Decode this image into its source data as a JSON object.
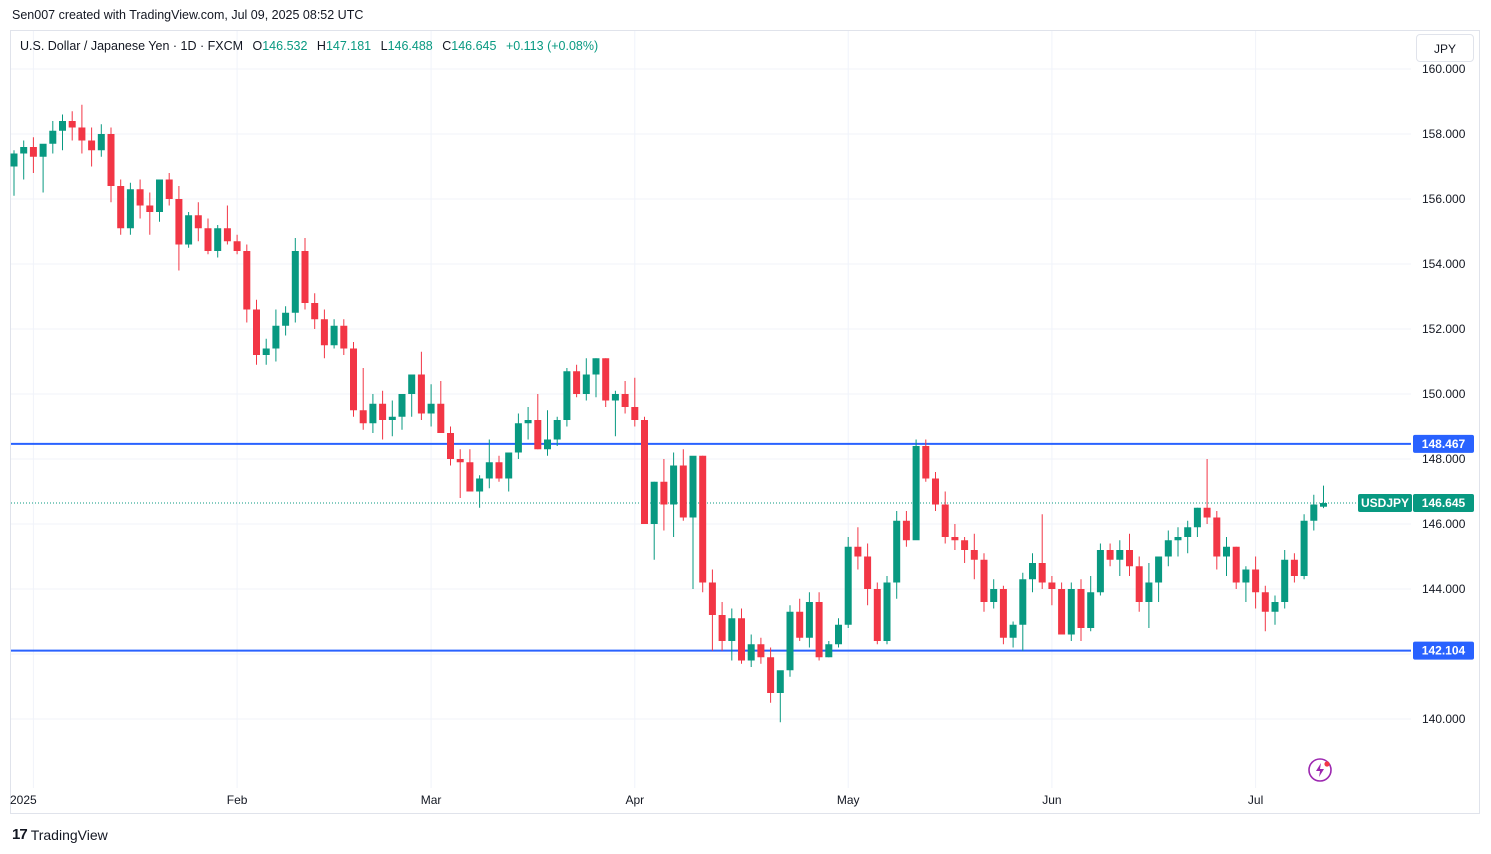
{
  "attribution": "Sen007 created with TradingView.com, Jul 09, 2025 08:52 UTC",
  "legend": {
    "symbol": "U.S. Dollar / Japanese Yen · 1D · FXCM",
    "open_label": "O",
    "open": "146.532",
    "high_label": "H",
    "high": "147.181",
    "low_label": "L",
    "low": "146.488",
    "close_label": "C",
    "close": "146.645",
    "change": "+0.113 (+0.08%)"
  },
  "currency_button": "JPY",
  "logo_text": "TradingView",
  "colors": {
    "up": "#089981",
    "down": "#f23645",
    "line": "#2962ff",
    "grid": "#f0f3fa"
  },
  "chart_data": {
    "type": "candlestick",
    "symbol": "USDJPY",
    "timeframe": "1D",
    "ylim": [
      138.6,
      160.5
    ],
    "y_ticks": [
      "140.000",
      "142.000",
      "144.000",
      "146.000",
      "148.000",
      "150.000",
      "152.000",
      "154.000",
      "156.000",
      "158.000",
      "160.000"
    ],
    "x_ticks": [
      {
        "label": "2025",
        "index": 2
      },
      {
        "label": "Feb",
        "index": 23
      },
      {
        "label": "Mar",
        "index": 43
      },
      {
        "label": "Apr",
        "index": 64
      },
      {
        "label": "May",
        "index": 86
      },
      {
        "label": "Jun",
        "index": 107
      },
      {
        "label": "Jul",
        "index": 128
      }
    ],
    "horizontal_lines": [
      {
        "value": 148.467,
        "label": "148.467"
      },
      {
        "value": 142.104,
        "label": "142.104"
      }
    ],
    "last_price": {
      "value": 146.645,
      "symbol_label": "USDJPY",
      "price_label": "146.645"
    },
    "candles": [
      [
        157.0,
        157.5,
        156.1,
        157.4
      ],
      [
        157.4,
        157.8,
        156.6,
        157.6
      ],
      [
        157.6,
        157.9,
        156.8,
        157.3
      ],
      [
        157.3,
        157.6,
        156.2,
        157.7
      ],
      [
        157.7,
        158.4,
        157.4,
        158.1
      ],
      [
        158.1,
        158.6,
        157.5,
        158.4
      ],
      [
        158.4,
        158.7,
        157.8,
        158.2
      ],
      [
        158.2,
        158.9,
        157.4,
        157.8
      ],
      [
        157.8,
        158.2,
        157.0,
        157.5
      ],
      [
        157.5,
        158.3,
        157.3,
        158.0
      ],
      [
        158.0,
        158.2,
        155.9,
        156.4
      ],
      [
        156.4,
        156.6,
        154.9,
        155.1
      ],
      [
        155.1,
        156.5,
        154.9,
        156.3
      ],
      [
        156.3,
        156.6,
        155.4,
        155.8
      ],
      [
        155.8,
        156.2,
        154.9,
        155.6
      ],
      [
        155.6,
        156.6,
        155.3,
        156.6
      ],
      [
        156.6,
        156.8,
        155.8,
        156.0
      ],
      [
        156.0,
        156.4,
        153.8,
        154.6
      ],
      [
        154.6,
        155.6,
        154.5,
        155.5
      ],
      [
        155.5,
        155.9,
        154.7,
        155.1
      ],
      [
        155.1,
        155.4,
        154.3,
        154.4
      ],
      [
        154.4,
        155.2,
        154.2,
        155.1
      ],
      [
        155.1,
        155.8,
        154.6,
        154.7
      ],
      [
        154.7,
        154.9,
        154.3,
        154.4
      ],
      [
        154.4,
        154.6,
        152.2,
        152.6
      ],
      [
        152.6,
        152.9,
        150.9,
        151.2
      ],
      [
        151.2,
        151.7,
        150.9,
        151.4
      ],
      [
        151.4,
        152.6,
        151.0,
        152.1
      ],
      [
        152.1,
        152.7,
        151.8,
        152.5
      ],
      [
        152.5,
        154.8,
        152.2,
        154.4
      ],
      [
        154.4,
        154.8,
        152.6,
        152.8
      ],
      [
        152.8,
        153.1,
        152.0,
        152.3
      ],
      [
        152.3,
        152.6,
        151.1,
        151.5
      ],
      [
        151.5,
        152.3,
        151.4,
        152.1
      ],
      [
        152.1,
        152.3,
        151.2,
        151.4
      ],
      [
        151.4,
        151.6,
        149.3,
        149.5
      ],
      [
        149.5,
        150.8,
        148.9,
        149.1
      ],
      [
        149.1,
        150.0,
        148.8,
        149.7
      ],
      [
        149.7,
        150.1,
        148.6,
        149.2
      ],
      [
        149.2,
        149.8,
        148.7,
        149.3
      ],
      [
        149.3,
        150.0,
        148.9,
        150.0
      ],
      [
        150.0,
        150.6,
        149.3,
        150.6
      ],
      [
        150.6,
        151.3,
        149.2,
        149.4
      ],
      [
        149.4,
        150.3,
        149.0,
        149.7
      ],
      [
        149.7,
        150.4,
        148.9,
        148.8
      ],
      [
        148.8,
        149.0,
        147.8,
        148.0
      ],
      [
        148.0,
        148.3,
        146.8,
        147.9
      ],
      [
        147.9,
        148.3,
        147.0,
        147.0
      ],
      [
        147.0,
        147.5,
        146.5,
        147.4
      ],
      [
        147.4,
        148.6,
        147.1,
        147.9
      ],
      [
        147.9,
        148.1,
        147.3,
        147.4
      ],
      [
        147.4,
        148.0,
        147.0,
        148.2
      ],
      [
        148.2,
        149.4,
        148.0,
        149.1
      ],
      [
        149.1,
        149.6,
        148.6,
        149.2
      ],
      [
        149.2,
        150.0,
        148.3,
        148.3
      ],
      [
        148.3,
        149.5,
        148.1,
        148.6
      ],
      [
        148.6,
        149.3,
        148.4,
        149.2
      ],
      [
        149.2,
        150.8,
        149.0,
        150.7
      ],
      [
        150.7,
        150.9,
        149.9,
        150.0
      ],
      [
        150.0,
        151.1,
        149.8,
        150.6
      ],
      [
        150.6,
        151.1,
        149.9,
        151.1
      ],
      [
        151.1,
        151.1,
        149.6,
        149.8
      ],
      [
        149.8,
        150.1,
        148.7,
        150.0
      ],
      [
        150.0,
        150.4,
        149.4,
        149.6
      ],
      [
        149.6,
        150.5,
        149.0,
        149.2
      ],
      [
        149.2,
        149.3,
        146.1,
        146.0
      ],
      [
        146.0,
        147.3,
        144.9,
        147.3
      ],
      [
        147.3,
        148.0,
        145.8,
        146.6
      ],
      [
        146.6,
        148.2,
        145.6,
        147.8
      ],
      [
        147.8,
        148.3,
        146.1,
        146.2
      ],
      [
        146.2,
        147.9,
        144.0,
        148.1
      ],
      [
        148.1,
        148.1,
        143.9,
        144.2
      ],
      [
        144.2,
        144.6,
        142.1,
        143.2
      ],
      [
        143.2,
        143.6,
        142.1,
        142.4
      ],
      [
        142.4,
        143.4,
        141.8,
        143.1
      ],
      [
        143.1,
        143.4,
        141.7,
        141.8
      ],
      [
        141.8,
        142.6,
        141.6,
        142.3
      ],
      [
        142.3,
        142.5,
        141.7,
        141.9
      ],
      [
        141.9,
        142.2,
        140.5,
        140.8
      ],
      [
        140.8,
        141.4,
        139.9,
        141.5
      ],
      [
        141.5,
        143.5,
        141.3,
        143.3
      ],
      [
        143.3,
        143.7,
        142.4,
        142.5
      ],
      [
        142.5,
        143.9,
        142.2,
        143.6
      ],
      [
        143.6,
        143.9,
        141.8,
        141.9
      ],
      [
        141.9,
        142.4,
        141.9,
        142.3
      ],
      [
        142.3,
        143.1,
        142.2,
        142.9
      ],
      [
        142.9,
        145.6,
        142.8,
        145.3
      ],
      [
        145.3,
        145.9,
        144.6,
        145.0
      ],
      [
        145.0,
        145.4,
        143.5,
        144.0
      ],
      [
        144.0,
        144.2,
        142.3,
        142.4
      ],
      [
        142.4,
        144.4,
        142.3,
        144.2
      ],
      [
        144.2,
        146.4,
        143.7,
        146.1
      ],
      [
        146.1,
        146.4,
        145.3,
        145.5
      ],
      [
        145.5,
        148.6,
        145.6,
        148.4
      ],
      [
        148.4,
        148.6,
        147.3,
        147.4
      ],
      [
        147.4,
        147.6,
        146.4,
        146.6
      ],
      [
        146.6,
        147.0,
        145.4,
        145.6
      ],
      [
        145.6,
        146.0,
        145.2,
        145.5
      ],
      [
        145.5,
        145.6,
        144.8,
        145.2
      ],
      [
        145.2,
        145.7,
        144.3,
        144.9
      ],
      [
        144.9,
        145.1,
        143.3,
        143.6
      ],
      [
        143.6,
        144.3,
        143.4,
        144.0
      ],
      [
        144.0,
        144.1,
        142.3,
        142.5
      ],
      [
        142.5,
        143.0,
        142.2,
        142.9
      ],
      [
        142.9,
        144.5,
        142.1,
        144.3
      ],
      [
        144.3,
        145.1,
        143.9,
        144.8
      ],
      [
        144.8,
        146.3,
        144.0,
        144.2
      ],
      [
        144.2,
        144.4,
        143.5,
        144.0
      ],
      [
        144.0,
        144.2,
        142.7,
        142.6
      ],
      [
        142.6,
        144.2,
        142.4,
        144.0
      ],
      [
        144.0,
        144.3,
        142.4,
        142.8
      ],
      [
        142.8,
        144.4,
        142.7,
        143.9
      ],
      [
        143.9,
        145.4,
        143.8,
        145.2
      ],
      [
        145.2,
        145.4,
        144.7,
        144.9
      ],
      [
        144.9,
        145.5,
        144.4,
        145.2
      ],
      [
        145.2,
        145.7,
        144.4,
        144.7
      ],
      [
        144.7,
        145.0,
        143.3,
        143.6
      ],
      [
        143.6,
        144.8,
        142.8,
        144.2
      ],
      [
        144.2,
        145.0,
        143.6,
        145.0
      ],
      [
        145.0,
        145.8,
        144.7,
        145.5
      ],
      [
        145.5,
        145.9,
        145.0,
        145.6
      ],
      [
        145.6,
        146.1,
        145.1,
        145.9
      ],
      [
        145.9,
        146.5,
        145.6,
        146.5
      ],
      [
        146.5,
        148.0,
        146.0,
        146.2
      ],
      [
        146.2,
        146.4,
        144.6,
        145.0
      ],
      [
        145.0,
        145.6,
        144.4,
        145.3
      ],
      [
        145.3,
        145.3,
        144.0,
        144.2
      ],
      [
        144.2,
        144.7,
        143.6,
        144.6
      ],
      [
        144.6,
        145.0,
        143.4,
        143.9
      ],
      [
        143.9,
        144.1,
        142.7,
        143.3
      ],
      [
        143.3,
        143.8,
        142.9,
        143.6
      ],
      [
        143.6,
        145.2,
        143.4,
        144.9
      ],
      [
        144.9,
        145.1,
        144.2,
        144.4
      ],
      [
        144.4,
        146.3,
        144.3,
        146.1
      ],
      [
        146.1,
        146.9,
        145.8,
        146.6
      ],
      [
        146.532,
        147.181,
        146.488,
        146.645
      ]
    ]
  }
}
